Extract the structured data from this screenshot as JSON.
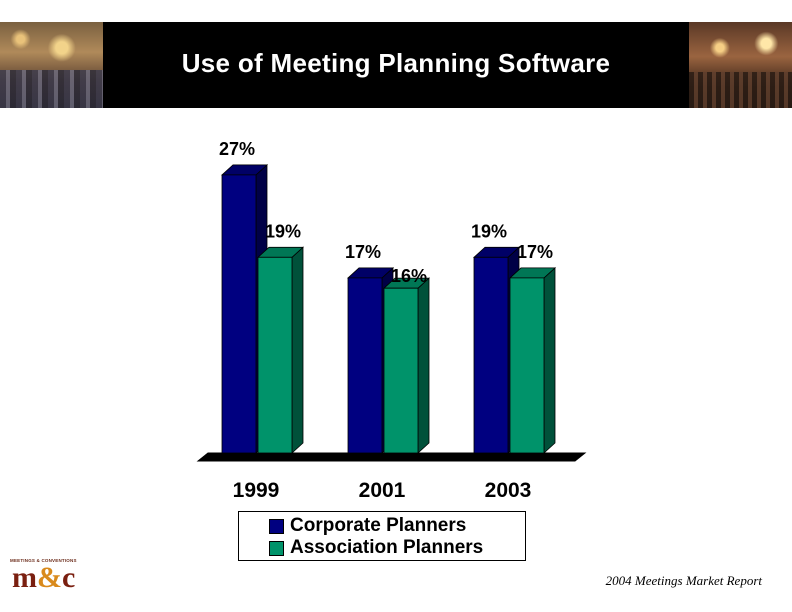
{
  "slide": {
    "title": "Use of Meeting Planning Software",
    "footer": "2004 Meetings Market Report",
    "logo_tagline": "MEETINGS & CONVENTIONS",
    "logo_m": "m",
    "logo_amp": "&",
    "logo_c": "c"
  },
  "chart_data": {
    "type": "bar",
    "title": "",
    "categories": [
      "1999",
      "2001",
      "2003"
    ],
    "series": [
      {
        "name": "Corporate Planners",
        "values": [
          27,
          17,
          19
        ],
        "labels": [
          "27%",
          "17%",
          "19%"
        ],
        "color": "#000080"
      },
      {
        "name": "Association Planners",
        "values": [
          19,
          16,
          17
        ],
        "labels": [
          "19%",
          "16%",
          "17%"
        ],
        "color": "#00936A"
      }
    ],
    "value_suffix": "%",
    "ylim": [
      0,
      30
    ],
    "grid": false,
    "legend_position": "bottom",
    "style": "3d"
  }
}
